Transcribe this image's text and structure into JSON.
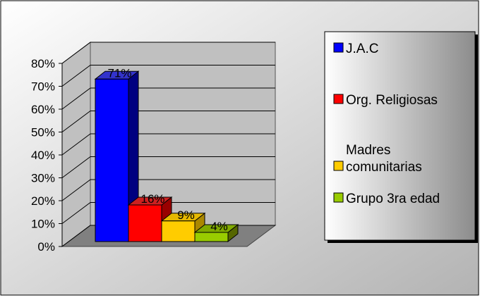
{
  "chart_data": {
    "type": "bar",
    "three_d": true,
    "categories": [
      "J.A.C",
      "Org. Religiosas",
      "Madres comunitarias",
      "Grupo  3ra edad"
    ],
    "values": [
      71,
      16,
      9,
      4
    ],
    "value_unit": "%",
    "data_labels": [
      "71%",
      "16%",
      "9%",
      "4%"
    ],
    "ylim": [
      0,
      80
    ],
    "yticks": [
      "0%",
      "10%",
      "20%",
      "30%",
      "40%",
      "50%",
      "60%",
      "70%",
      "80%"
    ],
    "grid": true,
    "legend_position": "right",
    "legend": [
      {
        "lines": [
          "J.A.C"
        ],
        "color": "#0000ff"
      },
      {
        "lines": [
          "Org. Religiosas"
        ],
        "color": "#ff0000"
      },
      {
        "lines": [
          "Madres",
          "comunitarias"
        ],
        "color": "#ffcc00"
      },
      {
        "lines": [
          "Grupo  3ra edad"
        ],
        "color": "#99cc00"
      }
    ],
    "colors": {
      "bars": [
        "#0000ff",
        "#ff0000",
        "#ffcc00",
        "#99cc00"
      ],
      "bar_tops": [
        "#3333cc",
        "#cc2020",
        "#e6b800",
        "#80aa00"
      ],
      "bar_sides": [
        "#000080",
        "#990000",
        "#aa8800",
        "#556600"
      ],
      "floor": "#808080",
      "walls": "#c0c0c0",
      "background_light": "#ffffff",
      "background_dark": "#b3b3b3",
      "legend_dark": "#8c8c8c"
    }
  }
}
